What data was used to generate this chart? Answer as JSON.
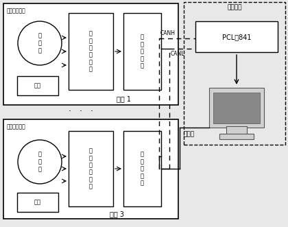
{
  "bg_color": "#e8e8e8",
  "white": "#ffffff",
  "black": "#000000",
  "label_node1": "节点 1",
  "label_node3": "节点 3",
  "label_shore": "岸上部分",
  "label_water1": "水下测量装置",
  "label_water3": "水下测量装置",
  "label_sig1": "信\n号\n处\n理\n电\n路",
  "label_sig3": "信\n号\n处\n理\n电\n路",
  "label_mcu1": "单\n片\n机\n系\n统",
  "label_mcu3": "单\n片\n机\n系\n统",
  "label_sensor1": "传\n感\n器",
  "label_sensor3": "传\n感\n器",
  "label_battery1": "电池",
  "label_battery3": "电池",
  "label_pcl": "PCL－841",
  "label_canh": "CANH",
  "label_canl": "CANL",
  "label_power": "电源线",
  "dots": "·   ·   ·"
}
